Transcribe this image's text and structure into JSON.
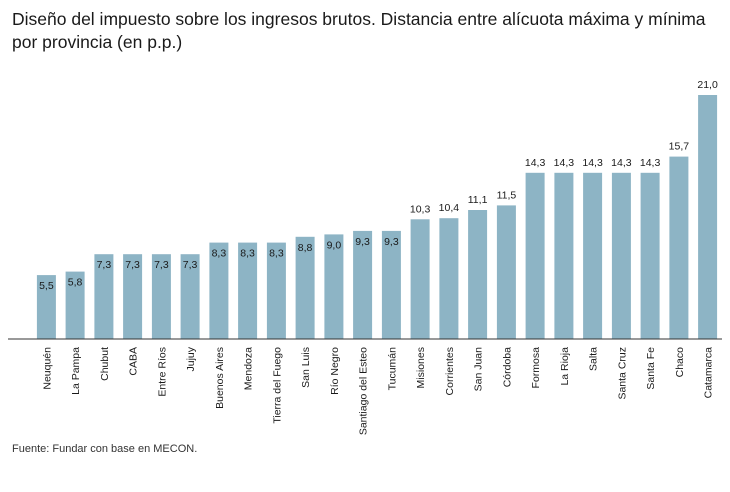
{
  "title": "Diseño del impuesto sobre los ingresos brutos. Distancia entre alícuota máxima y mínima por provincia (en p.p.)",
  "source": "Fuente: Fundar con base en MECON.",
  "colors": {
    "bar": "#8db4c5",
    "axis": "#333333",
    "text": "#1a1a1a"
  },
  "chart_data": {
    "type": "bar",
    "title": "Diseño del impuesto sobre los ingresos brutos. Distancia entre alícuota máxima y mínima por provincia (en p.p.)",
    "xlabel": "",
    "ylabel": "",
    "ylim": [
      0,
      21
    ],
    "grid": false,
    "categories": [
      "Neuquén",
      "La Pampa",
      "Chubut",
      "CABA",
      "Entre Ríos",
      "Jujuy",
      "Buenos Aires",
      "Mendoza",
      "Tierra del Fuego",
      "San Luis",
      "Río Negro",
      "Santiago del Esteo",
      "Tucumán",
      "Misiones",
      "Corrientes",
      "San Juan",
      "Córdoba",
      "Formosa",
      "La Rioja",
      "Salta",
      "Santa Cruz",
      "Santa Fe",
      "Chaco",
      "Catamarca"
    ],
    "values": [
      5.5,
      5.8,
      7.3,
      7.3,
      7.3,
      7.3,
      8.3,
      8.3,
      8.3,
      8.8,
      9.0,
      9.3,
      9.3,
      10.3,
      10.4,
      11.1,
      11.5,
      14.3,
      14.3,
      14.3,
      14.3,
      14.3,
      15.7,
      21.0
    ],
    "labels": [
      "5,5",
      "5,8",
      "7,3",
      "7,3",
      "7,3",
      "7,3",
      "8,3",
      "8,3",
      "8,3",
      "8,8",
      "9,0",
      "9,3",
      "9,3",
      "10,3",
      "10,4",
      "11,1",
      "11,5",
      "14,3",
      "14,3",
      "14,3",
      "14,3",
      "14,3",
      "15,7",
      "21,0"
    ]
  }
}
